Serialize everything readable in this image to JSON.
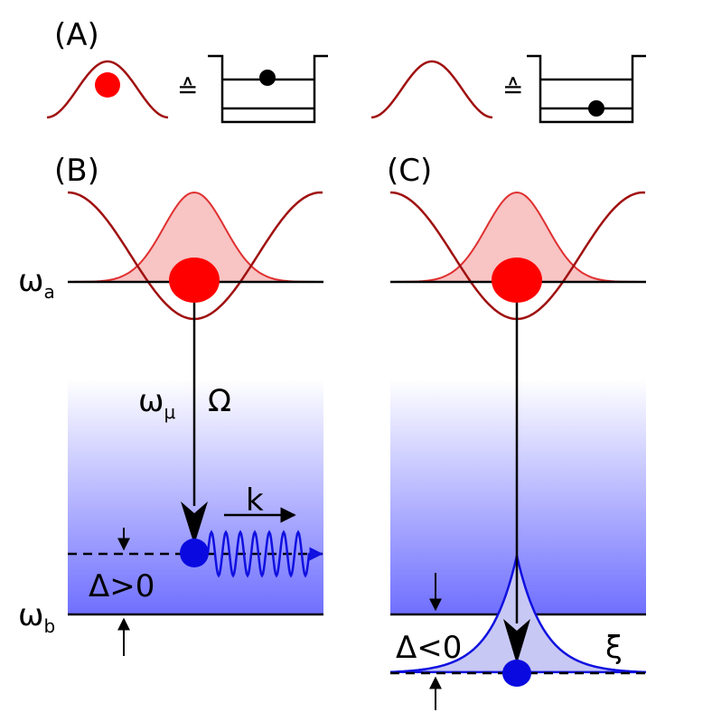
{
  "panels": {
    "A": {
      "label": "(A)",
      "equivalence": [
        "≙",
        "≙"
      ]
    },
    "B": {
      "label": "(B)",
      "upper_level": {
        "symbol": "ω",
        "sub": "a"
      },
      "lower_level": {
        "symbol": "ω",
        "sub": "b"
      },
      "transition": {
        "symbol": "ω",
        "sub": "μ"
      },
      "rabi": "Ω",
      "wavevector": "k",
      "detuning": "Δ>0"
    },
    "C": {
      "label": "(C)",
      "detuning": "Δ<0",
      "decay_length": "ξ"
    }
  }
}
